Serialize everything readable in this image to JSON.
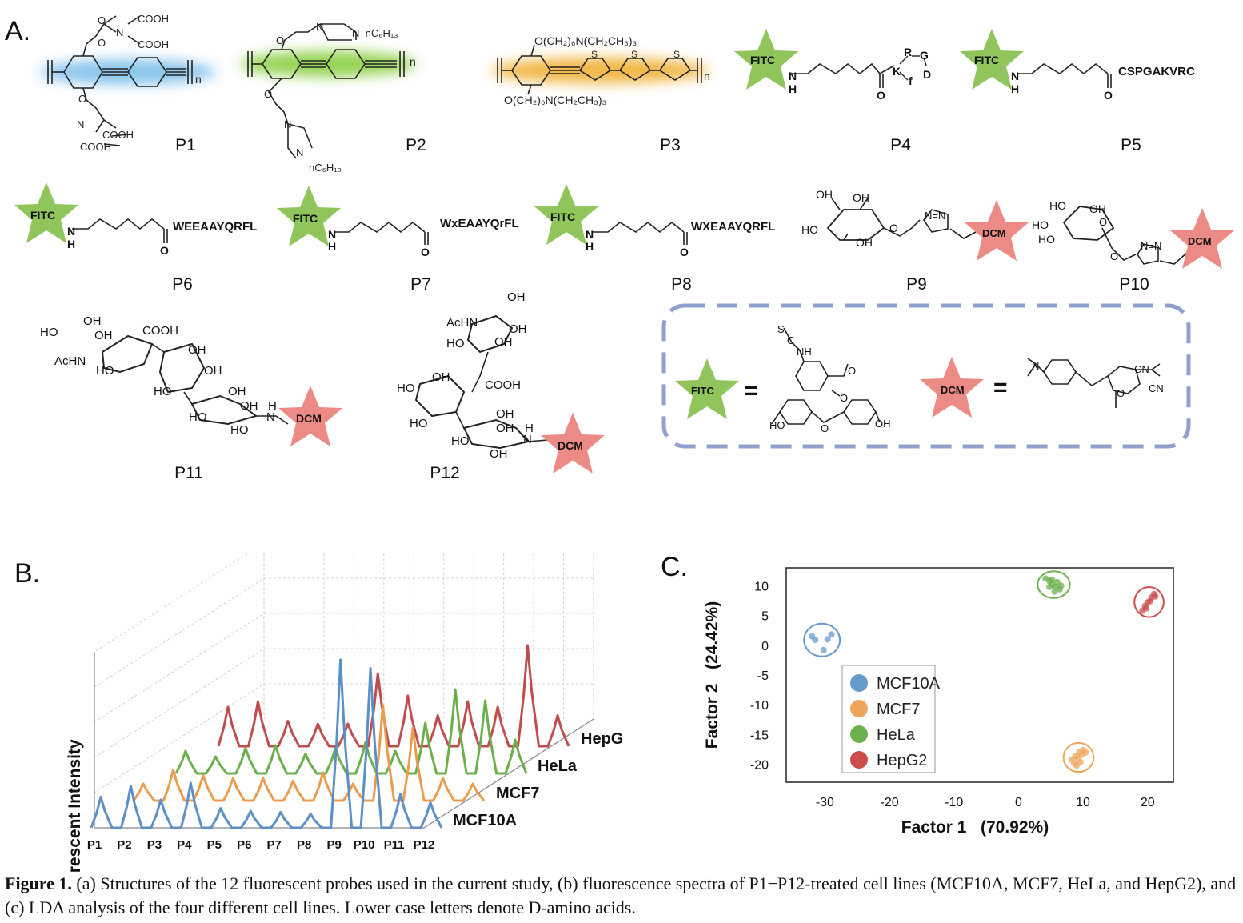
{
  "panels": {
    "a": "A.",
    "b": "B.",
    "c": "C."
  },
  "probes": [
    "P1",
    "P2",
    "P3",
    "P4",
    "P5",
    "P6",
    "P7",
    "P8",
    "P9",
    "P10",
    "P11",
    "P12"
  ],
  "chem": {
    "cooh": "COOH",
    "n": "n",
    "nc6h13": "N–nC₆H₁₃",
    "nc6h13b": "nC₆H₁₃",
    "p3_top": "O(CH₂)₆N(CH₂CH₃)₃",
    "p3_bot": "O(CH₂)₆N(CH₂CH₃)₃",
    "fitc": "FITC",
    "dcm": "DCM",
    "nh": "N",
    "h": "H",
    "o": "O",
    "p4_k": "K",
    "p4_r": "R",
    "p4_g": "G",
    "p4_f": "f",
    "p4_d": "D",
    "p5_seq": "CSPGAKVRC",
    "p6_seq": "WEEAAYQRFL",
    "p7_seq": "WxEAAYQrFL",
    "p8_seq": "WXEAAYQRFL",
    "oh": "OH",
    "ho": "HO",
    "achn": "AcHN",
    "triazole": "N=N",
    "cn": "CN",
    "eq": "="
  },
  "panel_b": {
    "ylabel": "Fluorescent Intensity",
    "cell_lines": [
      "MCF10A",
      "MCF7",
      "HeLa",
      "HepG2"
    ]
  },
  "chart_data": {
    "type": "scatter",
    "xlabel": "Factor 1   (70.92%)",
    "ylabel": "Factor 2   (24.42%)",
    "xlim": [
      -36,
      24
    ],
    "ylim": [
      -23,
      13
    ],
    "xticks": [
      -30,
      -20,
      -10,
      0,
      10,
      20
    ],
    "yticks": [
      10,
      5,
      0,
      -5,
      -10,
      -15,
      -20
    ],
    "legend_position": "bottom-left",
    "series": [
      {
        "name": "MCF10A",
        "color": "#6699cc",
        "points": [
          [
            -32,
            1.5
          ],
          [
            -31.5,
            0.9
          ],
          [
            -29,
            1.8
          ],
          [
            -29.6,
            1.0
          ],
          [
            -30.2,
            -0.8
          ]
        ]
      },
      {
        "name": "MCF7",
        "color": "#eea45a",
        "points": [
          [
            8.2,
            -19.2
          ],
          [
            8.8,
            -18.6
          ],
          [
            9.4,
            -18.0
          ],
          [
            10.0,
            -17.6
          ],
          [
            8.6,
            -19.8
          ],
          [
            9.2,
            -19.0
          ],
          [
            9.8,
            -18.4
          ],
          [
            10.4,
            -18.0
          ],
          [
            9.0,
            -20.2
          ],
          [
            9.6,
            -19.6
          ]
        ]
      },
      {
        "name": "HeLa",
        "color": "#6ab04c",
        "points": [
          [
            4.2,
            11.2
          ],
          [
            4.8,
            10.8
          ],
          [
            5.2,
            10.2
          ],
          [
            5.8,
            9.8
          ],
          [
            6.4,
            9.4
          ],
          [
            6.0,
            10.6
          ],
          [
            5.2,
            11.0
          ],
          [
            6.6,
            10.0
          ],
          [
            4.8,
            9.8
          ],
          [
            5.6,
            9.0
          ]
        ]
      },
      {
        "name": "HepG2",
        "color": "#cc4c4c",
        "points": [
          [
            19.2,
            5.8
          ],
          [
            19.6,
            6.6
          ],
          [
            20.0,
            7.2
          ],
          [
            20.6,
            8.0
          ],
          [
            21.0,
            8.6
          ],
          [
            19.8,
            6.2
          ],
          [
            20.4,
            7.4
          ],
          [
            21.2,
            8.2
          ]
        ]
      }
    ]
  },
  "caption": {
    "prefix": "Figure 1.",
    "text": " (a) Structures of the 12 fluorescent probes used in the current study, (b) fluorescence spectra of P1−P12-treated cell lines (MCF10A, MCF7, HeLa, and HepG2), and (c) LDA analysis of the four different cell lines. Lower case letters denote D-amino acids."
  }
}
